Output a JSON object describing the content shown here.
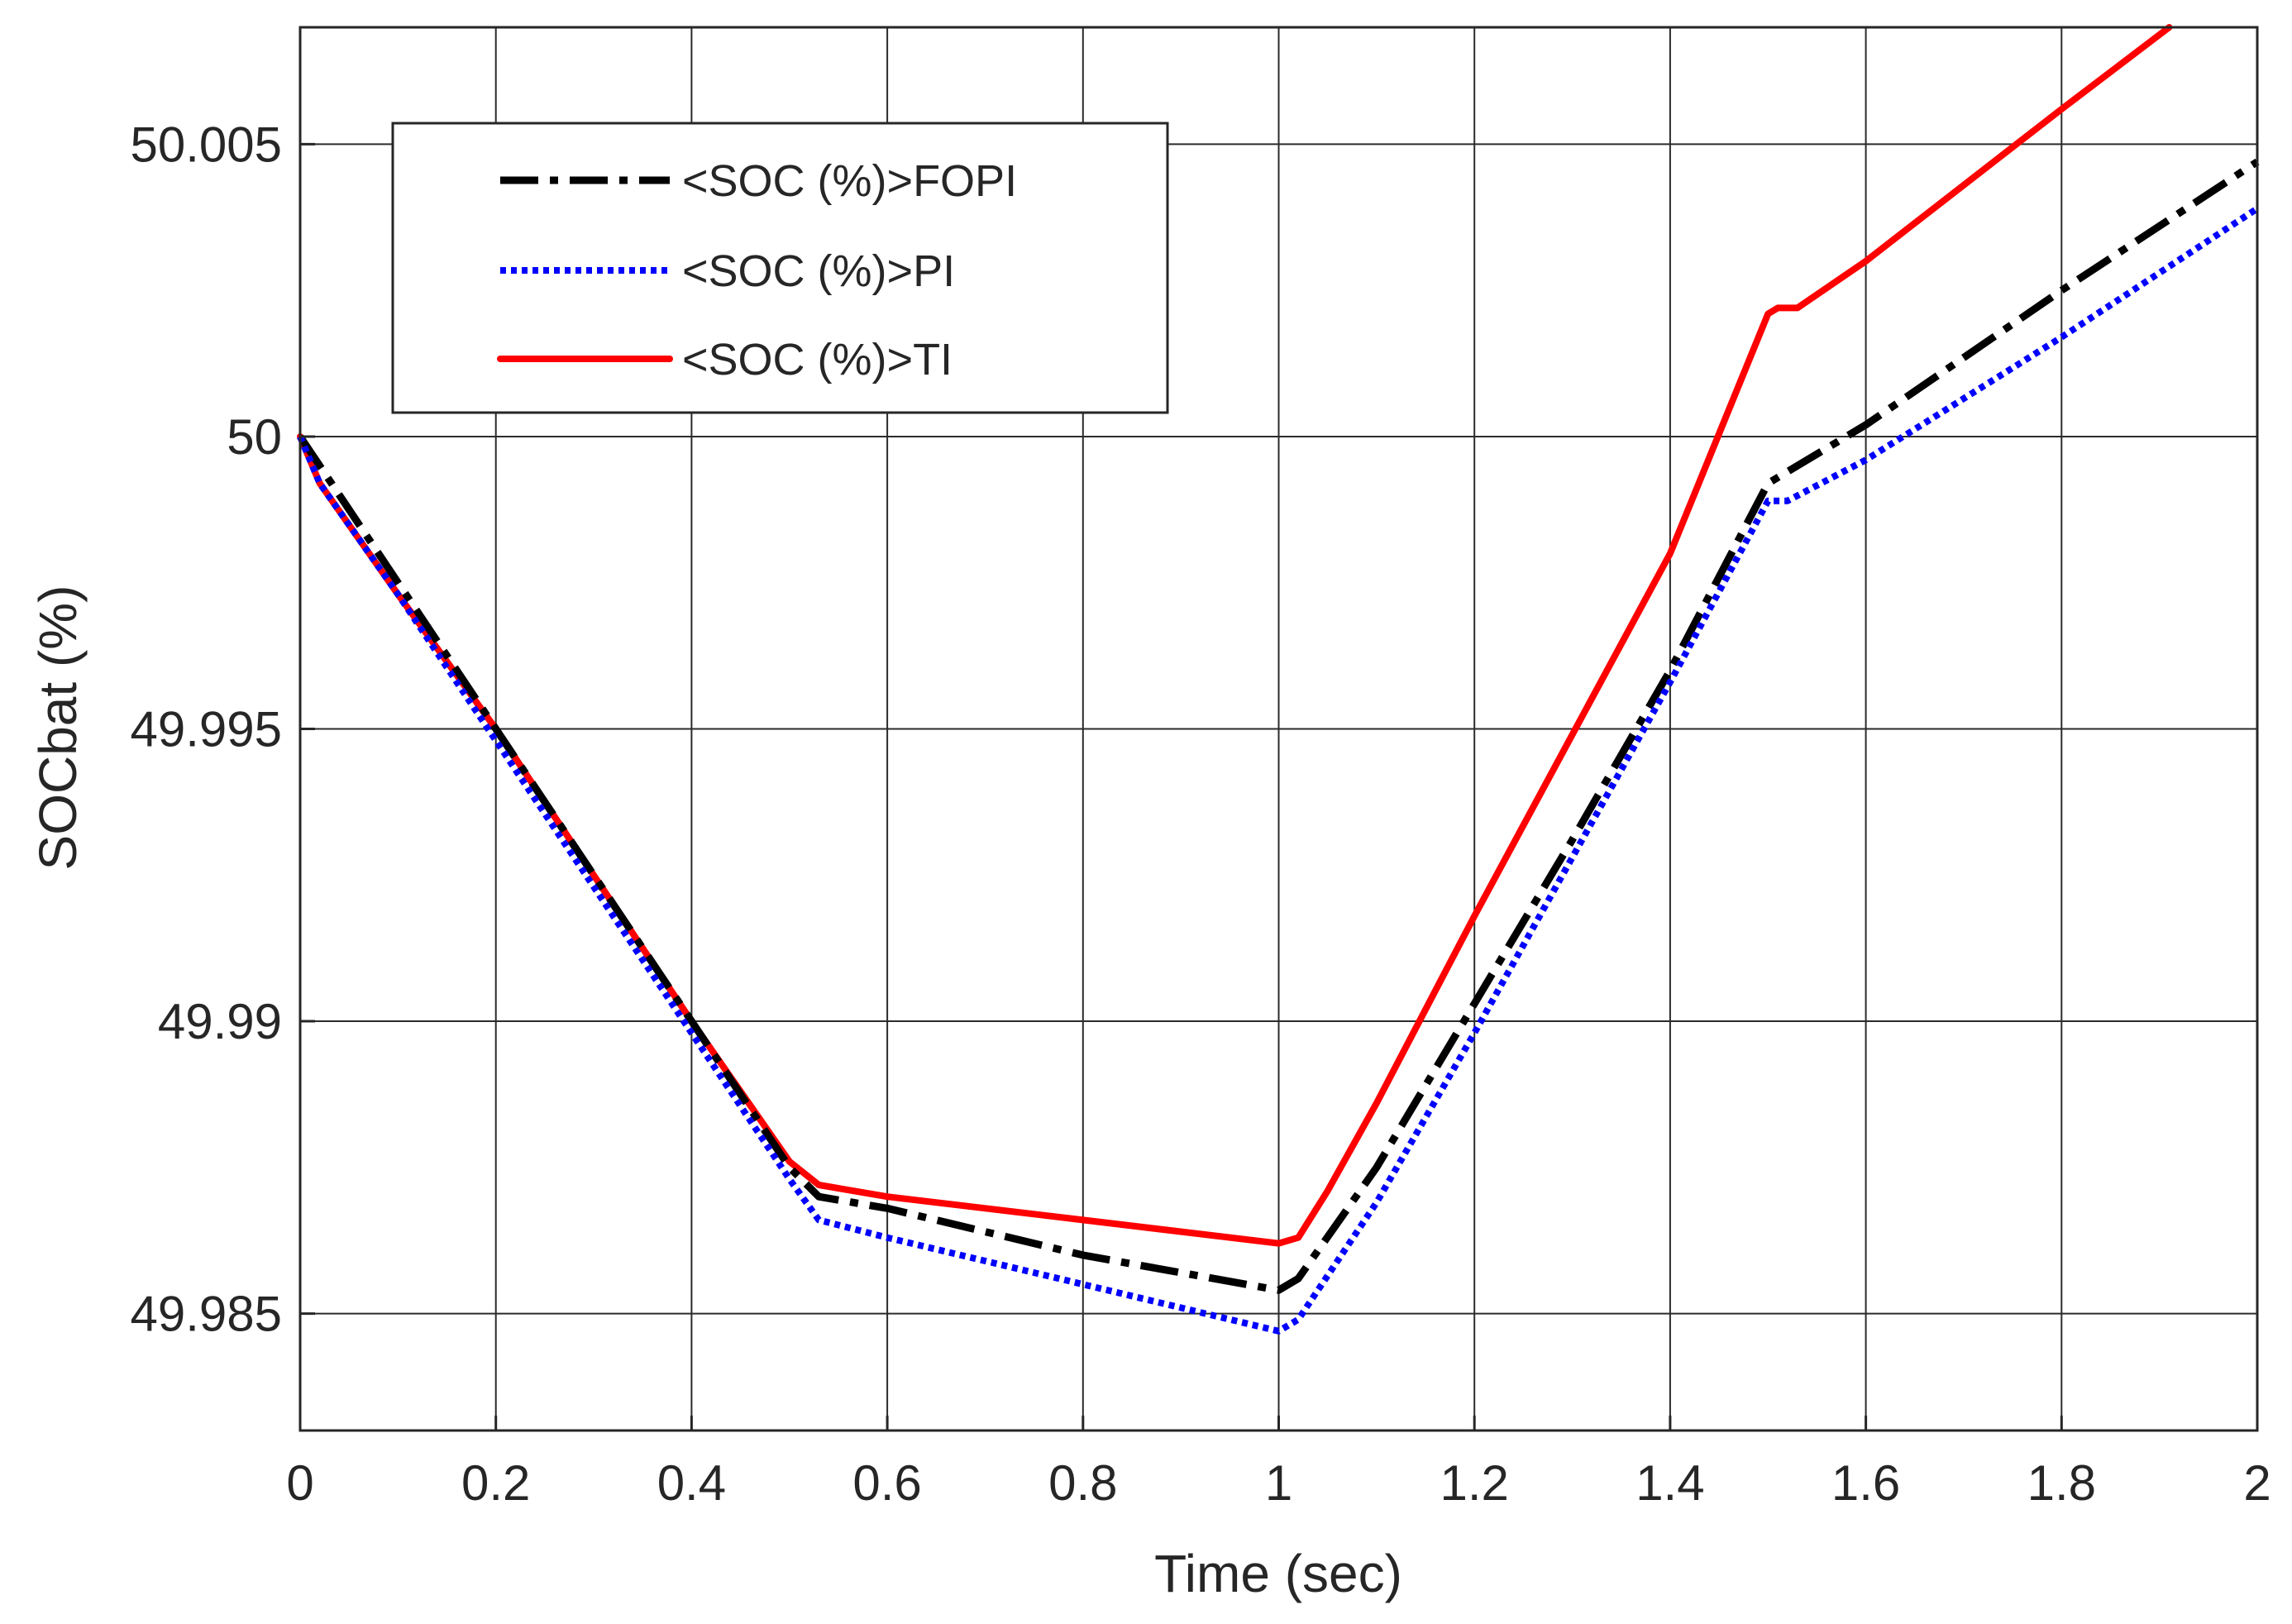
{
  "chart_data": {
    "type": "line",
    "title": "",
    "xlabel": "Time (sec)",
    "ylabel": "SOCbat (%)",
    "xlim": [
      0,
      2
    ],
    "ylim": [
      49.983,
      50.007
    ],
    "xticks": [
      0,
      0.2,
      0.4,
      0.6,
      0.8,
      1,
      1.2,
      1.4,
      1.6,
      1.8,
      2
    ],
    "xtick_labels": [
      "0",
      "0.2",
      "0.4",
      "0.6",
      "0.8",
      "1",
      "1.2",
      "1.4",
      "1.6",
      "1.8",
      "2"
    ],
    "yticks": [
      49.985,
      49.99,
      49.995,
      50,
      50.005
    ],
    "ytick_labels": [
      "49.985",
      "49.99",
      "49.995",
      "50",
      "50.005"
    ],
    "grid": true,
    "legend_position": "top-left",
    "series": [
      {
        "name": "<SOC (%)>FOPI",
        "color": "#000000",
        "style": "dash-dot",
        "x": [
          0,
          0.02,
          0.1,
          0.2,
          0.3,
          0.4,
          0.5,
          0.53,
          0.6,
          0.8,
          1.0,
          1.02,
          1.1,
          1.2,
          1.3,
          1.4,
          1.5,
          1.52,
          1.6,
          1.8,
          2.0
        ],
        "y": [
          50.0,
          49.9995,
          49.9975,
          49.995,
          49.9925,
          49.99,
          49.9875,
          49.987,
          49.9868,
          49.986,
          49.9854,
          49.9856,
          49.9875,
          49.9903,
          49.9931,
          49.996,
          49.9992,
          49.9994,
          50.0002,
          50.0025,
          50.0047
        ]
      },
      {
        "name": "<SOC (%)>PI",
        "color": "#0000ff",
        "style": "dotted",
        "x": [
          0,
          0.02,
          0.1,
          0.2,
          0.3,
          0.4,
          0.5,
          0.53,
          0.6,
          0.8,
          1.0,
          1.02,
          1.1,
          1.2,
          1.3,
          1.4,
          1.5,
          1.52,
          1.6,
          1.8,
          2.0
        ],
        "y": [
          50.0,
          49.9992,
          49.9973,
          49.9948,
          49.9923,
          49.9898,
          49.9873,
          49.9866,
          49.9863,
          49.9855,
          49.9847,
          49.9849,
          49.9869,
          49.9898,
          49.9928,
          49.9958,
          49.9989,
          49.9989,
          49.9996,
          50.0017,
          50.0039
        ]
      },
      {
        "name": "<SOC (%)>TI",
        "color": "#ff0000",
        "style": "solid",
        "x": [
          0,
          0.02,
          0.1,
          0.2,
          0.3,
          0.4,
          0.5,
          0.53,
          0.6,
          0.8,
          1.0,
          1.02,
          1.05,
          1.1,
          1.2,
          1.3,
          1.4,
          1.5,
          1.51,
          1.53,
          1.6,
          1.8,
          1.91
        ],
        "y": [
          50.0,
          49.9992,
          49.9973,
          49.995,
          49.9925,
          49.99,
          49.9876,
          49.9872,
          49.987,
          49.9866,
          49.9862,
          49.9863,
          49.9871,
          49.9886,
          49.9918,
          49.9949,
          49.998,
          50.0021,
          50.0022,
          50.0022,
          50.003,
          50.0056,
          50.007
        ]
      }
    ]
  }
}
